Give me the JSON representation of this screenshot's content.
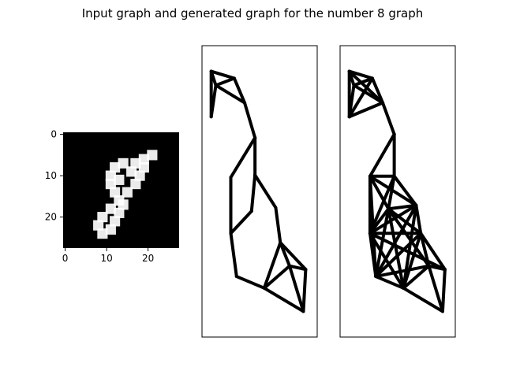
{
  "chart_data": {
    "title": "Input graph and generated graph for the number 8 graph",
    "colors": {
      "background": "#ffffff",
      "edge": "#000000",
      "image_background": "#000000",
      "image_foreground": "#ffffff"
    },
    "panels": [
      {
        "type": "heatmap",
        "name": "input-image",
        "colormap": "gray",
        "xlim": [
          -0.5,
          27.5
        ],
        "ylim": [
          27.5,
          -0.5
        ],
        "xticks": [
          0,
          10,
          20
        ],
        "yticks": [
          0,
          10,
          20
        ],
        "grid": false,
        "stroke_points": [
          [
            21,
            5
          ],
          [
            19,
            6
          ],
          [
            17,
            7
          ],
          [
            14,
            7
          ],
          [
            12,
            8
          ],
          [
            11,
            10
          ],
          [
            11,
            12
          ],
          [
            12,
            14
          ],
          [
            13,
            16
          ],
          [
            11,
            18
          ],
          [
            9,
            20
          ],
          [
            8,
            22
          ],
          [
            9,
            24
          ],
          [
            11,
            23
          ],
          [
            12,
            21
          ],
          [
            13,
            19
          ],
          [
            14,
            17
          ],
          [
            15,
            14
          ],
          [
            17,
            12
          ],
          [
            18,
            10
          ],
          [
            19,
            8
          ],
          [
            16,
            9
          ],
          [
            13,
            11
          ]
        ]
      },
      {
        "type": "network",
        "name": "input-graph",
        "axis_visible": false,
        "xlim": [
          0,
          10
        ],
        "ylim": [
          0,
          25
        ],
        "nodes": [
          [
            0.8,
            22.8
          ],
          [
            2.8,
            22.2
          ],
          [
            1.2,
            21.6
          ],
          [
            3.7,
            20.1
          ],
          [
            0.8,
            18.9
          ],
          [
            4.6,
            17.1
          ],
          [
            2.5,
            13.7
          ],
          [
            4.6,
            13.9
          ],
          [
            6.4,
            11.1
          ],
          [
            4.3,
            10.8
          ],
          [
            2.5,
            8.9
          ],
          [
            6.8,
            8.1
          ],
          [
            9.0,
            5.8
          ],
          [
            7.6,
            6.1
          ],
          [
            3.0,
            5.2
          ],
          [
            5.4,
            4.2
          ],
          [
            8.8,
            2.2
          ]
        ],
        "edges": [
          [
            0,
            1
          ],
          [
            0,
            2
          ],
          [
            0,
            4
          ],
          [
            1,
            2
          ],
          [
            1,
            3
          ],
          [
            2,
            3
          ],
          [
            3,
            5
          ],
          [
            4,
            2
          ],
          [
            5,
            6
          ],
          [
            5,
            7
          ],
          [
            6,
            10
          ],
          [
            7,
            8
          ],
          [
            7,
            9
          ],
          [
            9,
            10
          ],
          [
            8,
            11
          ],
          [
            10,
            14
          ],
          [
            14,
            15
          ],
          [
            15,
            11
          ],
          [
            15,
            13
          ],
          [
            11,
            13
          ],
          [
            11,
            12
          ],
          [
            13,
            12
          ],
          [
            12,
            16
          ],
          [
            13,
            16
          ],
          [
            15,
            16
          ]
        ]
      },
      {
        "type": "network",
        "name": "generated-graph",
        "axis_visible": false,
        "xlim": [
          0,
          10
        ],
        "ylim": [
          0,
          25
        ],
        "nodes": [
          [
            0.8,
            22.8
          ],
          [
            2.8,
            22.2
          ],
          [
            1.2,
            21.6
          ],
          [
            3.7,
            20.1
          ],
          [
            0.8,
            18.9
          ],
          [
            4.7,
            17.4
          ],
          [
            2.6,
            13.8
          ],
          [
            4.7,
            13.8
          ],
          [
            6.6,
            11.3
          ],
          [
            4.2,
            11.0
          ],
          [
            2.6,
            8.9
          ],
          [
            7.0,
            8.9
          ],
          [
            9.1,
            5.8
          ],
          [
            7.7,
            6.1
          ],
          [
            3.1,
            5.2
          ],
          [
            5.5,
            4.2
          ],
          [
            8.9,
            2.2
          ]
        ],
        "edges": [
          [
            0,
            1
          ],
          [
            0,
            2
          ],
          [
            0,
            4
          ],
          [
            1,
            2
          ],
          [
            1,
            3
          ],
          [
            2,
            3
          ],
          [
            3,
            5
          ],
          [
            4,
            2
          ],
          [
            0,
            3
          ],
          [
            4,
            1
          ],
          [
            4,
            3
          ],
          [
            2,
            1
          ],
          [
            5,
            6
          ],
          [
            5,
            7
          ],
          [
            6,
            7
          ],
          [
            6,
            8
          ],
          [
            6,
            9
          ],
          [
            6,
            10
          ],
          [
            7,
            8
          ],
          [
            7,
            9
          ],
          [
            7,
            10
          ],
          [
            8,
            9
          ],
          [
            8,
            10
          ],
          [
            8,
            11
          ],
          [
            9,
            10
          ],
          [
            9,
            11
          ],
          [
            6,
            14
          ],
          [
            10,
            14
          ],
          [
            10,
            15
          ],
          [
            10,
            11
          ],
          [
            9,
            14
          ],
          [
            9,
            15
          ],
          [
            8,
            14
          ],
          [
            8,
            15
          ],
          [
            14,
            15
          ],
          [
            14,
            11
          ],
          [
            15,
            11
          ],
          [
            15,
            13
          ],
          [
            11,
            13
          ],
          [
            11,
            12
          ],
          [
            13,
            12
          ],
          [
            12,
            16
          ],
          [
            13,
            16
          ],
          [
            15,
            16
          ],
          [
            9,
            13
          ],
          [
            10,
            12
          ],
          [
            14,
            13
          ]
        ]
      }
    ]
  }
}
